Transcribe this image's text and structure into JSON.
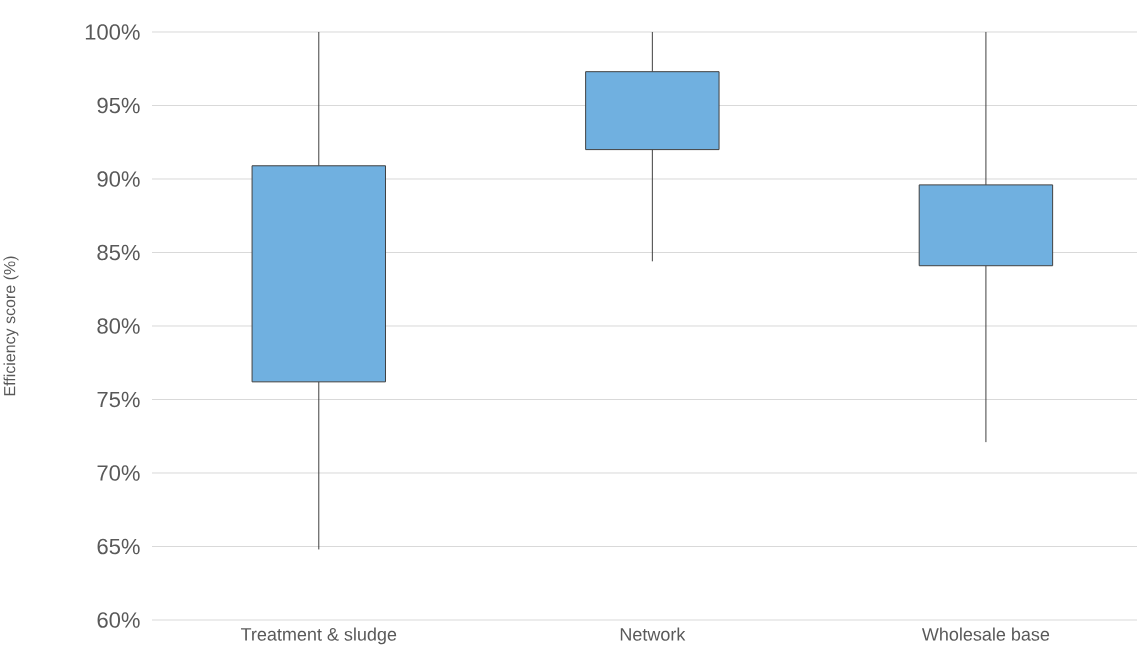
{
  "chart_data": {
    "type": "box",
    "ylabel": "Efficiency score (%)",
    "categories": [
      "Treatment & sludge",
      "Network",
      "Wholesale base"
    ],
    "boxes": [
      {
        "low": 64.8,
        "q1": 76.2,
        "median": null,
        "q3": 90.9,
        "high": 100
      },
      {
        "low": 84.4,
        "q1": 92.0,
        "median": null,
        "q3": 97.3,
        "high": 100
      },
      {
        "low": 72.1,
        "q1": 84.1,
        "median": null,
        "q3": 89.6,
        "high": 100
      }
    ],
    "color": "#70b0e0",
    "ylim": [
      60,
      100
    ],
    "yticks": [
      {
        "value": 60,
        "label": "60%"
      },
      {
        "value": 65,
        "label": "65%"
      },
      {
        "value": 70,
        "label": "70%"
      },
      {
        "value": 75,
        "label": "75%"
      },
      {
        "value": 80,
        "label": "80%"
      },
      {
        "value": 85,
        "label": "85%"
      },
      {
        "value": 90,
        "label": "90%"
      },
      {
        "value": 95,
        "label": "95%"
      },
      {
        "value": 100,
        "label": "100%"
      }
    ],
    "grid": "y"
  }
}
